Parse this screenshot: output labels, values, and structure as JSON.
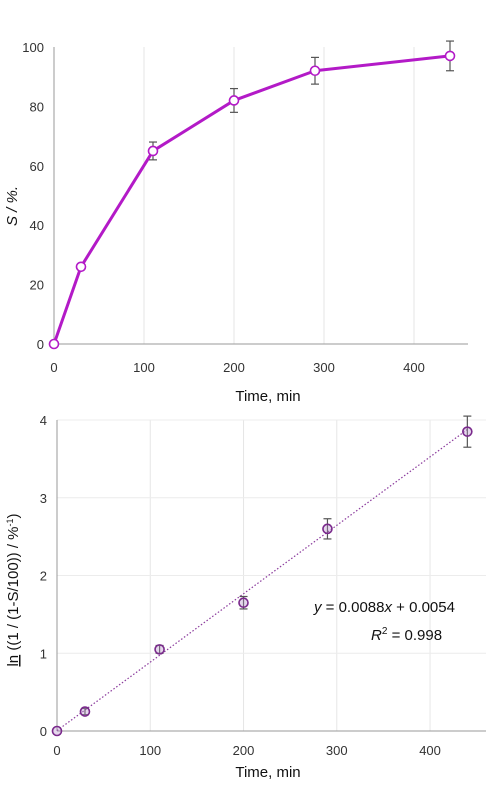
{
  "chart_data": [
    {
      "type": "line",
      "ylabel": "S / %.",
      "xlabel": "Time, min",
      "xlim": [
        0,
        460
      ],
      "ylim": [
        0,
        100
      ],
      "xticks": [
        0,
        100,
        200,
        300,
        400
      ],
      "xtick_labels": [
        "0",
        "100",
        "200",
        "300",
        "400"
      ],
      "yticks": [
        0,
        20,
        40,
        60,
        80,
        100
      ],
      "ytick_labels": [
        "0",
        "20",
        "40",
        "60",
        "80",
        "100"
      ],
      "grid": "vertical",
      "series": [
        {
          "x": [
            0,
            30,
            110,
            200,
            290,
            440
          ],
          "y": [
            0,
            26,
            65,
            82,
            92,
            97
          ],
          "error": [
            0,
            0,
            3,
            4,
            4.5,
            5
          ],
          "color": "#b31ac7",
          "marker": "open-circle"
        }
      ]
    },
    {
      "type": "scatter",
      "ylabel_parts": [
        "ln",
        " ((1 / (1-S/100)) / %",
        "-1",
        ")"
      ],
      "xlabel": "Time, min",
      "xlim": [
        0,
        460
      ],
      "ylim": [
        0,
        4
      ],
      "xticks": [
        0,
        100,
        200,
        300,
        400
      ],
      "xtick_labels": [
        "0",
        "100",
        "200",
        "300",
        "400"
      ],
      "yticks": [
        0,
        1,
        2,
        3,
        4
      ],
      "ytick_labels": [
        "0",
        "1",
        "2",
        "3",
        "4"
      ],
      "grid": "both",
      "series": [
        {
          "x": [
            0,
            30,
            110,
            200,
            290,
            440
          ],
          "y": [
            0,
            0.25,
            1.05,
            1.65,
            2.6,
            3.85
          ],
          "error": [
            0,
            0.04,
            0.05,
            0.08,
            0.13,
            0.2
          ],
          "color": "#7a2a8c",
          "marker": "open-circle"
        }
      ],
      "trendline": {
        "slope": 0.0088,
        "intercept": 0.0054,
        "style": "dotted",
        "color": "#8a3a9c"
      },
      "equation": {
        "line1": {
          "y": "y",
          "eq": " = 0.0088",
          "x": "x",
          "rest": " + 0.0054"
        },
        "line2": {
          "r": "R",
          "sup": "2",
          "rest": " = 0.998"
        }
      }
    }
  ]
}
